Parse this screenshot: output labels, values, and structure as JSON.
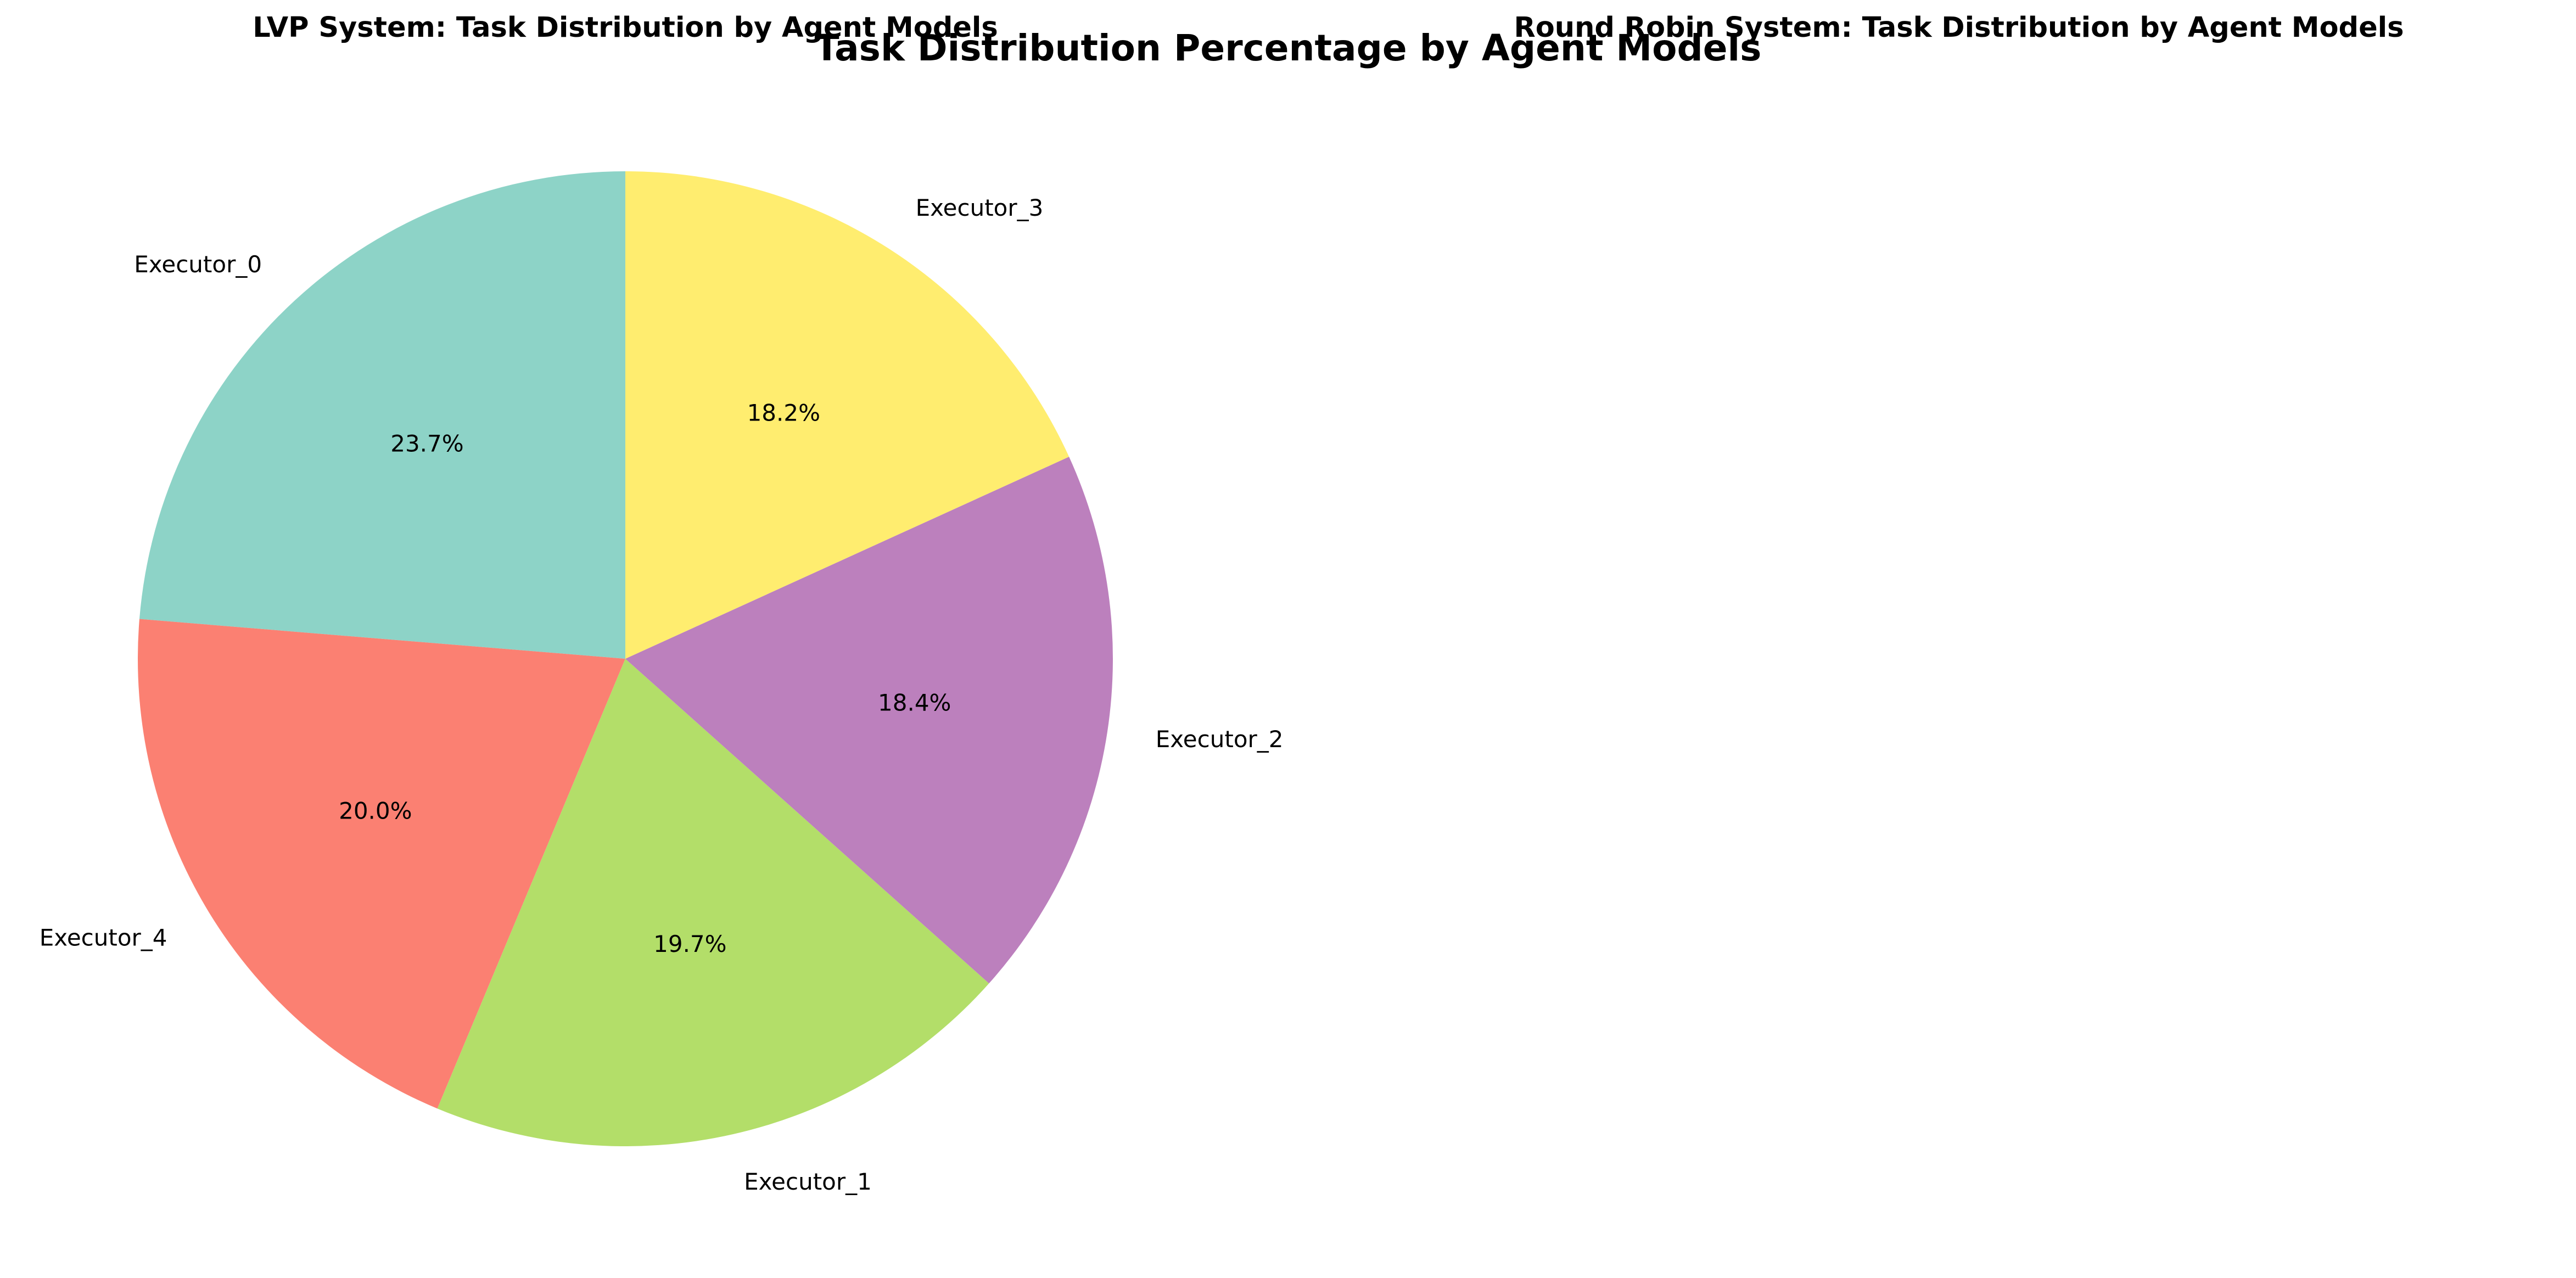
{
  "figure": {
    "suptitle": "Task Distribution Percentage by Agent Models"
  },
  "chart_data": [
    {
      "type": "pie",
      "title": "LVP System: Task Distribution by Agent Models",
      "start_angle_deg": 90,
      "direction": "counterclockwise",
      "autopct_format": "%.1f%%",
      "slices": [
        {
          "label": "Executor_0",
          "value": 23.7,
          "pct_label": "23.7%",
          "color": "#8dd3c7"
        },
        {
          "label": "Executor_4",
          "value": 20.0,
          "pct_label": "20.0%",
          "color": "#fb8072"
        },
        {
          "label": "Executor_1",
          "value": 19.7,
          "pct_label": "19.7%",
          "color": "#b3de69"
        },
        {
          "label": "Executor_2",
          "value": 18.4,
          "pct_label": "18.4%",
          "color": "#bc80bd"
        },
        {
          "label": "Executor_3",
          "value": 18.2,
          "pct_label": "18.2%",
          "color": "#ffed6f"
        }
      ]
    },
    {
      "type": "pie",
      "title": "Round Robin System: Task Distribution by Agent Models",
      "slices": []
    }
  ]
}
